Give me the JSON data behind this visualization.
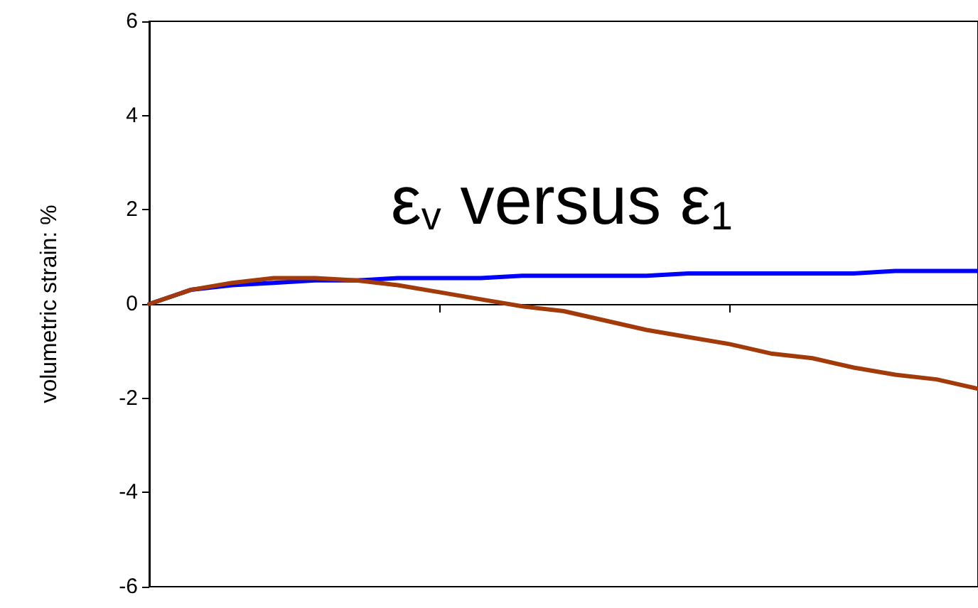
{
  "chart_data": {
    "type": "line",
    "ylabel": "volumetric strain: %",
    "annotations": [
      "ε$_{v}$ versus ε$_{1}$"
    ],
    "categories": [
      null,
      null,
      null,
      null,
      null,
      null,
      null,
      null,
      null,
      null,
      null,
      null,
      null,
      null,
      null,
      null,
      null,
      null,
      null,
      null,
      null
    ],
    "series": [
      {
        "color": "#0000ff",
        "values": [
          0,
          0.3,
          0.4,
          0.45,
          0.5,
          0.5,
          0.55,
          0.55,
          0.55,
          0.6,
          0.6,
          0.6,
          0.6,
          0.65,
          0.65,
          0.65,
          0.65,
          0.65,
          0.7,
          0.7,
          0.7
        ]
      },
      {
        "color": "#a33a0a",
        "values": [
          0,
          0.3,
          0.45,
          0.55,
          0.55,
          0.5,
          0.4,
          0.25,
          0.1,
          -0.05,
          -0.15,
          -0.35,
          -0.55,
          -0.7,
          -0.85,
          -1.05,
          -1.15,
          -1.35,
          -1.5,
          -1.6,
          -1.8
        ]
      }
    ],
    "ylim": [
      -6,
      6
    ],
    "yticks": [
      -6,
      -4,
      -2,
      0,
      2,
      4,
      6
    ],
    "tick_labels": "y",
    "marker": "none",
    "line_style": "solid"
  }
}
